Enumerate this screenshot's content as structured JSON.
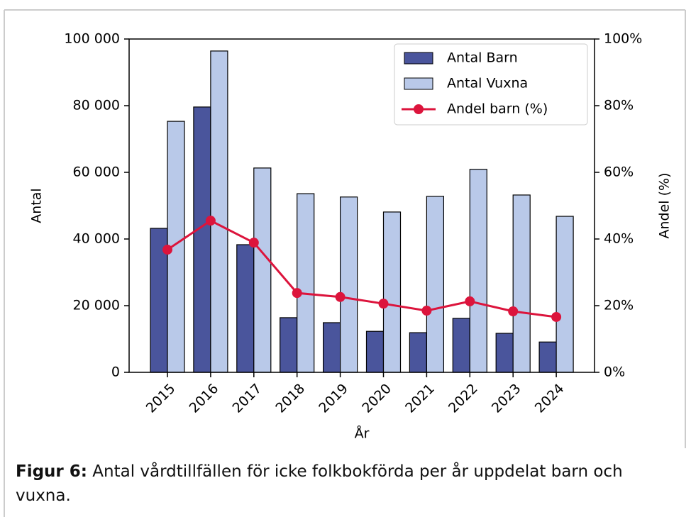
{
  "chart_data": {
    "type": "bar_line",
    "categories": [
      "2015",
      "2016",
      "2017",
      "2018",
      "2019",
      "2020",
      "2021",
      "2022",
      "2023",
      "2024"
    ],
    "series": [
      {
        "name": "Antal Barn",
        "color": "#4a559c",
        "values": [
          43200,
          79600,
          38300,
          16400,
          14900,
          12300,
          11900,
          16200,
          11700,
          9100
        ]
      },
      {
        "name": "Antal Vuxna",
        "color": "#b9c9e9",
        "values": [
          75300,
          96400,
          61300,
          53600,
          52600,
          48100,
          52800,
          60900,
          53200,
          46800
        ]
      },
      {
        "name": "Andel barn (%)",
        "color": "#dc143c",
        "axis": "y2",
        "values": [
          36.8,
          45.5,
          38.9,
          23.8,
          22.6,
          20.6,
          18.5,
          21.3,
          18.3,
          16.6
        ]
      }
    ],
    "xlabel": "År",
    "ylabel": "Antal",
    "y2label": "Andel (%)",
    "ylim": [
      0,
      100000
    ],
    "yticks": [
      0,
      {
        "value": 20000,
        "label": "20 000"
      },
      {
        "value": 40000,
        "label": "40 000"
      },
      {
        "value": 60000,
        "label": "60 000"
      },
      {
        "value": 80000,
        "label": "80 000"
      },
      {
        "value": 100000,
        "label": "100 000"
      }
    ],
    "y2lim": [
      0,
      100
    ],
    "y2ticks": [
      {
        "value": 0,
        "label": "0%"
      },
      {
        "value": 20,
        "label": "20%"
      },
      {
        "value": 40,
        "label": "40%"
      },
      {
        "value": 60,
        "label": "60%"
      },
      {
        "value": 80,
        "label": "80%"
      },
      {
        "value": 100,
        "label": "100%"
      }
    ],
    "legend": "upper right"
  },
  "caption": {
    "label": "Figur 6:",
    "text": "Antal vårdtillfällen för icke folkbokförda per år uppdelat barn och vuxna."
  }
}
